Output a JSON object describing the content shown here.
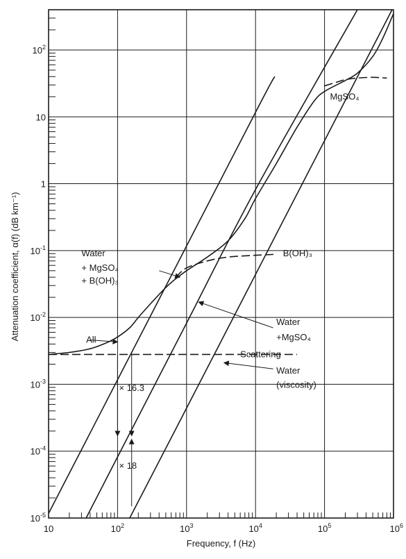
{
  "chart_data": {
    "type": "line",
    "title": "",
    "xlabel": "Frequency, f (Hz)",
    "ylabel": "Attenuation coefficient, α(f) (dB km⁻¹)",
    "x_scale": "log",
    "y_scale": "log",
    "xlim": [
      10,
      1000000
    ],
    "ylim": [
      1e-05,
      400
    ],
    "grid": true,
    "x_ticks": [
      {
        "base": "10",
        "exp": ""
      },
      {
        "base": "10",
        "exp": "2"
      },
      {
        "base": "10",
        "exp": "3"
      },
      {
        "base": "10",
        "exp": "4"
      },
      {
        "base": "10",
        "exp": "5"
      },
      {
        "base": "10",
        "exp": "6"
      }
    ],
    "y_ticks": [
      {
        "base": "10",
        "exp": "-5"
      },
      {
        "base": "10",
        "exp": "-4"
      },
      {
        "base": "10",
        "exp": "-3"
      },
      {
        "base": "10",
        "exp": "-2"
      },
      {
        "base": "10",
        "exp": "-1"
      },
      {
        "base": "1",
        "exp": ""
      },
      {
        "base": "10",
        "exp": ""
      },
      {
        "base": "10",
        "exp": "2"
      }
    ],
    "series": [
      {
        "name": "All",
        "style": "solid",
        "points": [
          [
            10,
            0.0028
          ],
          [
            20,
            0.003
          ],
          [
            40,
            0.0034
          ],
          [
            70,
            0.0042
          ],
          [
            100,
            0.0051
          ],
          [
            150,
            0.007
          ],
          [
            200,
            0.01
          ],
          [
            300,
            0.016
          ],
          [
            500,
            0.028
          ],
          [
            700,
            0.038
          ],
          [
            1000,
            0.05
          ],
          [
            2000,
            0.08
          ],
          [
            4000,
            0.14
          ],
          [
            7000,
            0.3
          ],
          [
            10000,
            0.6
          ],
          [
            20000,
            2.0
          ],
          [
            40000,
            7.0
          ],
          [
            70000,
            17
          ],
          [
            100000,
            24
          ],
          [
            200000,
            35
          ],
          [
            300000,
            45
          ],
          [
            500000,
            80
          ],
          [
            700000,
            150
          ],
          [
            1000000,
            350
          ]
        ]
      },
      {
        "name": "B(OH)₃",
        "style": "dashed",
        "points": [
          [
            700,
            0.04
          ],
          [
            1000,
            0.055
          ],
          [
            2000,
            0.07
          ],
          [
            4000,
            0.08
          ],
          [
            10000,
            0.085
          ],
          [
            20000,
            0.088
          ]
        ]
      },
      {
        "name": "MgSO₄",
        "style": "dashed",
        "points": [
          [
            100000,
            29
          ],
          [
            150000,
            33
          ],
          [
            200000,
            36
          ],
          [
            300000,
            38
          ],
          [
            500000,
            39
          ],
          [
            800000,
            38
          ]
        ]
      },
      {
        "name": "Scattering",
        "style": "dashed",
        "points": [
          [
            10,
            0.0028
          ],
          [
            40000,
            0.0028
          ]
        ]
      },
      {
        "name": "Water + MgSO₄",
        "style": "solid",
        "points": [
          [
            35,
            1e-05
          ],
          [
            100,
            8.2e-05
          ],
          [
            1000,
            0.0082
          ],
          [
            10000,
            0.82
          ],
          [
            300000,
            400
          ]
        ]
      },
      {
        "name": "Water (viscosity)",
        "style": "solid",
        "points": [
          [
            10,
            1.17e-05
          ],
          [
            100,
            0.00117
          ],
          [
            1000,
            0.117
          ],
          [
            10000,
            11.7
          ],
          [
            17000,
            33
          ],
          [
            19000,
            40
          ]
        ]
      },
      {
        "name": "Water (viscosity)",
        "style": "solid",
        "points": [
          [
            150,
            1e-05
          ],
          [
            1000,
            0.00044
          ],
          [
            10000,
            0.044
          ],
          [
            100000,
            4.4
          ],
          [
            1000000,
            440
          ]
        ]
      }
    ],
    "annotations": [
      {
        "text": "All",
        "x": 35,
        "y": 0.0046
      },
      {
        "text": "Water",
        "x": 30,
        "y": 0.09
      },
      {
        "text": "+ MgSO₄",
        "x": 30,
        "y": 0.055
      },
      {
        "text": "+ B(OH)₃",
        "x": 30,
        "y": 0.035
      },
      {
        "text": "B(OH)₃",
        "x": 25000,
        "y": 0.09
      },
      {
        "text": "MgSO₄",
        "x": 120000,
        "y": 20
      },
      {
        "text": "Water",
        "x": 20000,
        "y": 0.0085
      },
      {
        "text": "+MgSO₄",
        "x": 20000,
        "y": 0.005
      },
      {
        "text": "Scattering",
        "x": 6000,
        "y": 0.0028
      },
      {
        "text": "Water",
        "x": 20000,
        "y": 0.0016
      },
      {
        "text": "(viscosity)",
        "x": 20000,
        "y": 0.00097
      },
      {
        "text": "× 16.3",
        "x": 105,
        "y": 0.00088
      },
      {
        "text": "× 18",
        "x": 105,
        "y": 6e-05
      }
    ],
    "arrows": [
      {
        "from": [
          400,
          0.05
        ],
        "to": [
          800,
          0.04
        ]
      },
      {
        "from": [
          40,
          0.0046
        ],
        "to": [
          100,
          0.0043
        ]
      },
      {
        "from": [
          18000,
          0.007
        ],
        "to": [
          1500,
          0.017
        ]
      },
      {
        "from": [
          18000,
          0.0017
        ],
        "to": [
          3500,
          0.0021
        ]
      },
      {
        "from": [
          100,
          0.0028
        ],
        "to": [
          100,
          0.00017
        ]
      },
      {
        "from": [
          160,
          0.0028
        ],
        "to": [
          160,
          0.00017
        ]
      },
      {
        "from": [
          160,
          1.5e-05
        ],
        "to": [
          160,
          0.00015
        ]
      }
    ]
  }
}
